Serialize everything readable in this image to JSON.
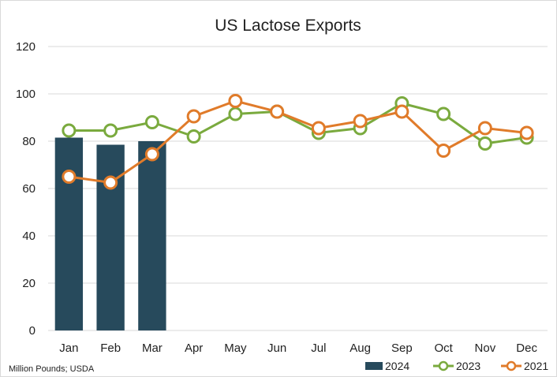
{
  "chart_data": {
    "type": "bar+line",
    "title": "US Lactose Exports",
    "categories": [
      "Jan",
      "Feb",
      "Mar",
      "Apr",
      "May",
      "Jun",
      "Jul",
      "Aug",
      "Sep",
      "Oct",
      "Nov",
      "Dec"
    ],
    "ylim": [
      0,
      120
    ],
    "yticks": [
      "0",
      "20",
      "40",
      "60",
      "80",
      "100",
      "120"
    ],
    "grid": "horizontal",
    "legend_position": "bottom-right",
    "series": [
      {
        "name": "2024",
        "kind": "bar",
        "color": "#274a5c",
        "values": [
          81.5,
          78.5,
          80,
          null,
          null,
          null,
          null,
          null,
          null,
          null,
          null,
          null
        ]
      },
      {
        "name": "2023",
        "kind": "line",
        "color": "#7aaa3e",
        "values": [
          84.5,
          84.5,
          88,
          82,
          91.5,
          92.5,
          83.5,
          85.5,
          96,
          91.5,
          79,
          81.5
        ]
      },
      {
        "name": "2021",
        "kind": "line",
        "color": "#e07b2a",
        "values": [
          65,
          62.5,
          74.5,
          90.5,
          97,
          92.5,
          85.5,
          88.5,
          92.5,
          76,
          85.5,
          83.5
        ]
      }
    ],
    "footnote": "Million Pounds; USDA"
  }
}
